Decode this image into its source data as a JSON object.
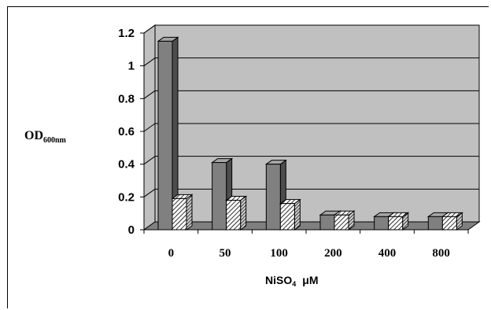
{
  "chart_data": {
    "type": "bar",
    "style": "3d-clustered-column",
    "categories": [
      "0",
      "50",
      "100",
      "200",
      "400",
      "800"
    ],
    "series": [
      {
        "values": [
          1.15,
          0.41,
          0.4,
          0.09,
          0.08,
          0.08
        ],
        "fill": "dark-gray",
        "color": "#808080"
      },
      {
        "values": [
          0.19,
          0.18,
          0.16,
          0.09,
          0.08,
          0.08
        ],
        "fill": "diagonal-hatch",
        "color": "#ffffff"
      }
    ],
    "y_ticks": [
      "0",
      "0.2",
      "0.4",
      "0.6",
      "0.8",
      "1",
      "1.2"
    ],
    "ylim": [
      0,
      1.2
    ],
    "ylabel": {
      "main": "OD",
      "subscript": "600nm"
    },
    "xlabel": {
      "main": "NiSO",
      "subscript": "4",
      "unit": "μM"
    },
    "grid": true,
    "legend": "none",
    "colors": {
      "plot_wall": "#c0c0c0",
      "floor": "#808080",
      "gridline": "#000000"
    }
  }
}
